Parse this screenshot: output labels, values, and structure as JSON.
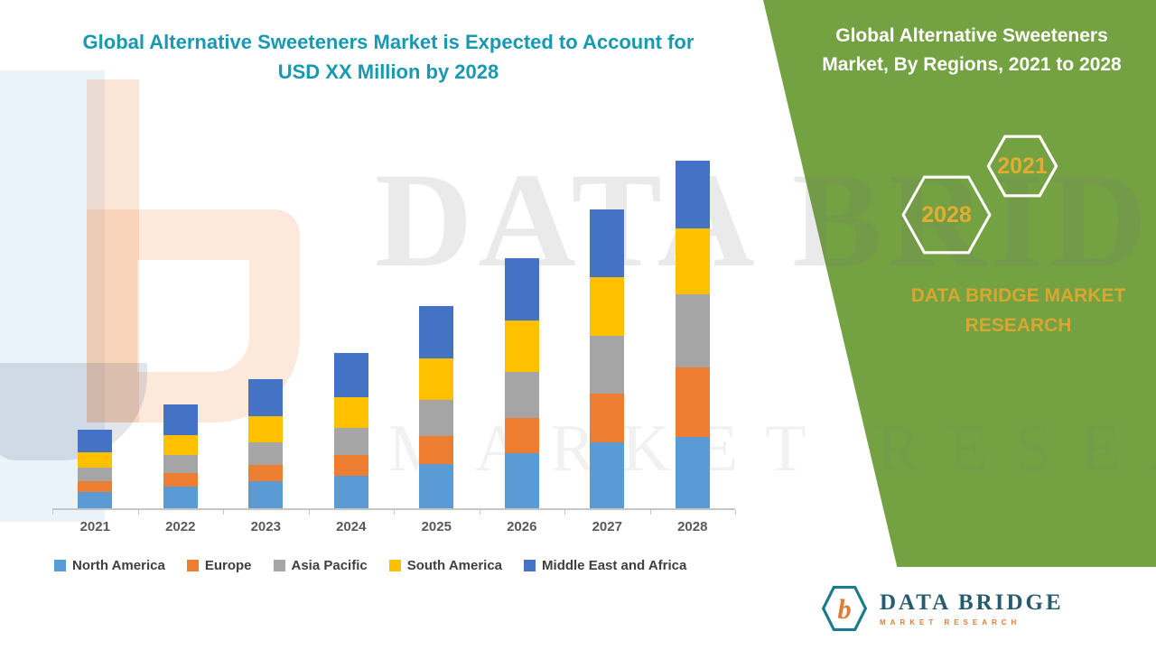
{
  "left_title": {
    "line1": "Global Alternative Sweeteners Market is Expected to Account for",
    "line2": "USD XX Million by 2028"
  },
  "right_panel": {
    "bg_color": "#74A243",
    "title_line1": "Global Alternative Sweeteners",
    "title_line2": "Market, By Regions, 2021 to 2028",
    "hexagons": [
      {
        "label": "2028"
      },
      {
        "label": "2021"
      }
    ],
    "accent_text_color": "#D9A62E",
    "brand_line1": "DATA BRIDGE MARKET",
    "brand_line2": "RESEARCH"
  },
  "watermark": {
    "line1": "DATA BRIDGE",
    "line2": "MARKET RESEARCH"
  },
  "logo": {
    "name": "DATA BRIDGE",
    "subtitle": "MARKET RESEARCH",
    "mark_letter": "b",
    "teal_color": "#1B7A8C",
    "orange_color": "#E07B39"
  },
  "chart_data": {
    "type": "bar",
    "stacked": true,
    "title": "Global Alternative Sweeteners Market is Expected to Account for USD XX Million by 2028",
    "xlabel": "",
    "ylabel": "",
    "ylim": [
      0,
      100
    ],
    "grid": false,
    "legend_position": "bottom",
    "value_units": "relative index (actual values masked as USD XX Million)",
    "categories": [
      "2021",
      "2022",
      "2023",
      "2024",
      "2025",
      "2026",
      "2027",
      "2028"
    ],
    "series": [
      {
        "name": "North America",
        "color": "#5B9BD5",
        "values": [
          4.7,
          6.2,
          7.8,
          9.4,
          12.8,
          15.8,
          19.0,
          20.5
        ]
      },
      {
        "name": "Europe",
        "color": "#ED7D31",
        "values": [
          3.1,
          3.9,
          4.8,
          5.8,
          8.0,
          10.2,
          14.0,
          20.0
        ]
      },
      {
        "name": "Asia Pacific",
        "color": "#A5A5A5",
        "values": [
          3.9,
          5.2,
          6.5,
          7.9,
          10.5,
          13.2,
          16.5,
          21.0
        ]
      },
      {
        "name": "South America",
        "color": "#FFC000",
        "values": [
          4.5,
          5.8,
          7.3,
          8.8,
          11.8,
          14.8,
          17.0,
          19.0
        ]
      },
      {
        "name": "Middle East and Africa",
        "color": "#4472C4",
        "values": [
          6.5,
          8.7,
          10.8,
          12.9,
          15.0,
          18.0,
          19.5,
          19.5
        ]
      }
    ]
  }
}
